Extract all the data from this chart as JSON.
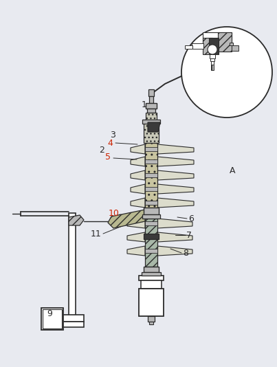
{
  "bg_color": "#e8eaf0",
  "line_color": "#2a2a2a",
  "dark_fill": "#3a3a3a",
  "gray_fill": "#7a7a7a",
  "light_gray": "#b8b8b8",
  "white_fill": "#ffffff",
  "hatch_fill": "#c8c8b8",
  "red_label_color": "#cc2200",
  "label_color": "#2a2a2a",
  "figsize": [
    4.03,
    5.34
  ],
  "dpi": 100
}
